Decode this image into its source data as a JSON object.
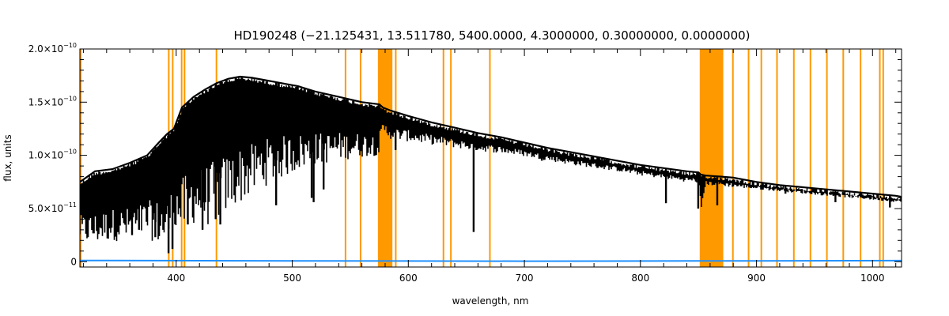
{
  "chart_data": {
    "type": "line",
    "title": "HD190248   (−21.125431, 13.511780, 5400.0000, 4.3000000, 0.30000000, 0.0000000)",
    "xlabel": "wavelength, nm",
    "ylabel": "flux, units",
    "xlim": [
      317,
      1025
    ],
    "ylim": [
      -5e-12,
      2e-10
    ],
    "x_ticks": [
      {
        "value": 400,
        "label": "400"
      },
      {
        "value": 500,
        "label": "500"
      },
      {
        "value": 600,
        "label": "600"
      },
      {
        "value": 700,
        "label": "700"
      },
      {
        "value": 800,
        "label": "800"
      },
      {
        "value": 900,
        "label": "900"
      },
      {
        "value": 1000,
        "label": "1000"
      }
    ],
    "y_ticks": [
      {
        "value": 0,
        "mantissa": "0",
        "exp": ""
      },
      {
        "value": 5e-11,
        "mantissa": "5.0×10",
        "exp": "−11"
      },
      {
        "value": 1e-10,
        "mantissa": "1.0×10",
        "exp": "−10"
      },
      {
        "value": 1.5e-10,
        "mantissa": "1.5×10",
        "exp": "−10"
      },
      {
        "value": 2e-10,
        "mantissa": "2.0×10",
        "exp": "−10"
      }
    ],
    "grid": false,
    "legend": "none",
    "colors": {
      "spectrum": "#000000",
      "error": "#1e90ff",
      "masks": "#ff9900"
    },
    "series": [
      {
        "role": "spectrum",
        "color": "#000000",
        "x": [
          317,
          330,
          345,
          360,
          375,
          385,
          392,
          398,
          405,
          415,
          425,
          435,
          445,
          455,
          465,
          475,
          485,
          495,
          505,
          520,
          540,
          560,
          575,
          578,
          585,
          600,
          620,
          640,
          660,
          680,
          700,
          720,
          740,
          760,
          780,
          800,
          820,
          840,
          850,
          852,
          856,
          870,
          880,
          890,
          900,
          920,
          940,
          960,
          980,
          1000,
          1020,
          1025
        ],
        "upper": [
          7.5e-11,
          8.5e-11,
          8.7e-11,
          9.3e-11,
          1e-10,
          1.12e-10,
          1.2e-10,
          1.25e-10,
          1.45e-10,
          1.55e-10,
          1.62e-10,
          1.68e-10,
          1.72e-10,
          1.74e-10,
          1.73e-10,
          1.71e-10,
          1.69e-10,
          1.67e-10,
          1.65e-10,
          1.6e-10,
          1.55e-10,
          1.5e-10,
          1.48e-10,
          1.45e-10,
          1.42e-10,
          1.37e-10,
          1.31e-10,
          1.26e-10,
          1.21e-10,
          1.17e-10,
          1.12e-10,
          1.07e-10,
          1.03e-10,
          9.9e-11,
          9.5e-11,
          9.1e-11,
          8.8e-11,
          8.5e-11,
          8.4e-11,
          8.2e-11,
          8.1e-11,
          8e-11,
          7.9e-11,
          7.7e-11,
          7.5e-11,
          7.2e-11,
          7e-11,
          6.8e-11,
          6.6e-11,
          6.4e-11,
          6.2e-11,
          6.1e-11
        ],
        "lower": [
          1.8e-11,
          1.5e-11,
          2e-11,
          1.7e-11,
          2.3e-11,
          1.5e-11,
          1e-11,
          3e-11,
          2.5e-11,
          3.5e-11,
          3.2e-11,
          3.8e-11,
          4.5e-11,
          5.5e-11,
          6e-11,
          7e-11,
          7.5e-11,
          8e-11,
          8.5e-11,
          9e-11,
          9.5e-11,
          9.8e-11,
          1e-10,
          1.2e-10,
          1.15e-10,
          1.13e-10,
          1.1e-10,
          1.07e-10,
          1.04e-10,
          1.02e-10,
          9.9e-11,
          9.5e-11,
          9.1e-11,
          8.8e-11,
          8.5e-11,
          8.1e-11,
          7.8e-11,
          7.5e-11,
          7.4e-11,
          4e-11,
          7.2e-11,
          7.1e-11,
          7e-11,
          6.9e-11,
          6.8e-11,
          6.6e-11,
          6.4e-11,
          6.2e-11,
          6e-11,
          5.8e-11,
          5.6e-11,
          5.5e-11
        ]
      },
      {
        "role": "error",
        "color": "#1e90ff",
        "x": [
          317,
          500,
          700,
          900,
          1025
        ],
        "y": [
          1.2e-12,
          8e-13,
          5e-13,
          8e-13,
          1e-12
        ]
      }
    ],
    "dip_lines": [
      {
        "x": 362,
        "y": 2.5e-11
      },
      {
        "x": 368,
        "y": 3e-11
      },
      {
        "x": 382,
        "y": 2.3e-11
      },
      {
        "x": 393.4,
        "y": 8e-12
      },
      {
        "x": 396.8,
        "y": 1.2e-11
      },
      {
        "x": 410,
        "y": 3.5e-11
      },
      {
        "x": 422.7,
        "y": 3e-11
      },
      {
        "x": 434,
        "y": 4e-11
      },
      {
        "x": 438,
        "y": 3.5e-11
      },
      {
        "x": 486.1,
        "y": 5.3e-11
      },
      {
        "x": 516.7,
        "y": 6e-11
      },
      {
        "x": 518.4,
        "y": 5.6e-11
      },
      {
        "x": 527,
        "y": 6.8e-11
      },
      {
        "x": 589,
        "y": 1.05e-10
      },
      {
        "x": 656.3,
        "y": 2.8e-11
      },
      {
        "x": 715,
        "y": 9.5e-11
      },
      {
        "x": 767,
        "y": 8.9e-11
      },
      {
        "x": 822,
        "y": 5.5e-11
      },
      {
        "x": 849.8,
        "y": 5e-11
      },
      {
        "x": 866.2,
        "y": 5.3e-11
      },
      {
        "x": 925,
        "y": 6.4e-11
      },
      {
        "x": 968,
        "y": 5.6e-11
      },
      {
        "x": 1015,
        "y": 5.1e-11
      }
    ],
    "mask_bands": [
      [
        317.0,
        318.0
      ],
      [
        392.9,
        394.0
      ],
      [
        396.3,
        397.4
      ],
      [
        404.0,
        404.9
      ],
      [
        406.5,
        407.4
      ],
      [
        434.0,
        434.9
      ],
      [
        545.2,
        545.9
      ],
      [
        558.2,
        558.9
      ],
      [
        573.8,
        586.3
      ],
      [
        588.5,
        589.4
      ],
      [
        629.6,
        630.5
      ],
      [
        636.0,
        636.9
      ],
      [
        669.6,
        670.5
      ],
      [
        851.1,
        871.4
      ],
      [
        879.0,
        880.2
      ],
      [
        892.5,
        893.8
      ],
      [
        903.5,
        904.8
      ],
      [
        917.0,
        918.2
      ],
      [
        931.5,
        932.7
      ],
      [
        945.8,
        947.0
      ],
      [
        960.0,
        961.3
      ],
      [
        974.1,
        975.4
      ],
      [
        989.0,
        990.2
      ],
      [
        1005.6,
        1006.8
      ],
      [
        1008.5,
        1009.7
      ]
    ]
  }
}
